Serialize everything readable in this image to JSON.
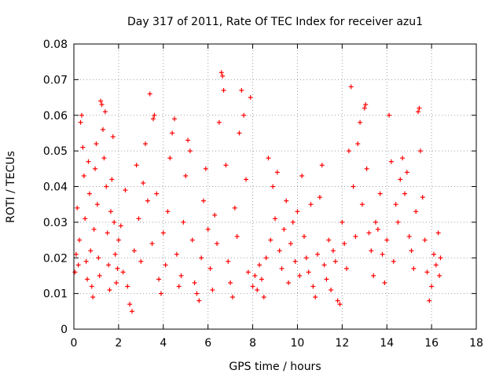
{
  "chart_data": {
    "type": "scatter",
    "title": "Day 317 of 2011, Rate Of TEC Index for receiver azu1",
    "xlabel": "GPS time / hours",
    "ylabel": "ROTI / TECUs",
    "xlim": [
      0,
      18
    ],
    "ylim": [
      0,
      0.08
    ],
    "x_ticks": [
      0,
      2,
      4,
      6,
      8,
      10,
      12,
      14,
      16,
      18
    ],
    "x_tick_labels": [
      "0",
      "2",
      "4",
      "6",
      "8",
      "10",
      "12",
      "14",
      "16",
      "18"
    ],
    "y_ticks": [
      0,
      0.01,
      0.02,
      0.03,
      0.04,
      0.05,
      0.06,
      0.07,
      0.08
    ],
    "y_tick_labels": [
      "0",
      "0.01",
      "0.02",
      "0.03",
      "0.04",
      "0.05",
      "0.06",
      "0.07",
      "0.08"
    ],
    "grid": true,
    "marker": "+",
    "series_color": "#ff0000",
    "series": [
      {
        "name": "ROTI",
        "points": [
          [
            0.05,
            0.016
          ],
          [
            0.1,
            0.021
          ],
          [
            0.15,
            0.034
          ],
          [
            0.2,
            0.018
          ],
          [
            0.25,
            0.025
          ],
          [
            0.3,
            0.058
          ],
          [
            0.35,
            0.06
          ],
          [
            0.4,
            0.051
          ],
          [
            0.45,
            0.043
          ],
          [
            0.5,
            0.031
          ],
          [
            0.55,
            0.019
          ],
          [
            0.6,
            0.014
          ],
          [
            0.65,
            0.047
          ],
          [
            0.7,
            0.038
          ],
          [
            0.75,
            0.022
          ],
          [
            0.8,
            0.012
          ],
          [
            0.85,
            0.009
          ],
          [
            0.9,
            0.028
          ],
          [
            0.95,
            0.045
          ],
          [
            1.0,
            0.052
          ],
          [
            1.05,
            0.035
          ],
          [
            1.1,
            0.02
          ],
          [
            1.15,
            0.015
          ],
          [
            1.2,
            0.064
          ],
          [
            1.25,
            0.063
          ],
          [
            1.3,
            0.056
          ],
          [
            1.35,
            0.048
          ],
          [
            1.4,
            0.061
          ],
          [
            1.45,
            0.04
          ],
          [
            1.5,
            0.027
          ],
          [
            1.55,
            0.018
          ],
          [
            1.6,
            0.011
          ],
          [
            1.65,
            0.033
          ],
          [
            1.7,
            0.042
          ],
          [
            1.75,
            0.054
          ],
          [
            1.8,
            0.03
          ],
          [
            1.85,
            0.021
          ],
          [
            1.9,
            0.013
          ],
          [
            1.95,
            0.017
          ],
          [
            2.0,
            0.025
          ],
          [
            2.1,
            0.029
          ],
          [
            2.2,
            0.016
          ],
          [
            2.3,
            0.039
          ],
          [
            2.4,
            0.012
          ],
          [
            2.5,
            0.007
          ],
          [
            2.6,
            0.005
          ],
          [
            2.7,
            0.022
          ],
          [
            2.8,
            0.046
          ],
          [
            2.9,
            0.031
          ],
          [
            3.0,
            0.019
          ],
          [
            3.1,
            0.041
          ],
          [
            3.2,
            0.052
          ],
          [
            3.3,
            0.036
          ],
          [
            3.4,
            0.066
          ],
          [
            3.5,
            0.024
          ],
          [
            3.55,
            0.059
          ],
          [
            3.6,
            0.06
          ],
          [
            3.7,
            0.038
          ],
          [
            3.8,
            0.014
          ],
          [
            3.9,
            0.01
          ],
          [
            4.0,
            0.027
          ],
          [
            4.1,
            0.018
          ],
          [
            4.2,
            0.033
          ],
          [
            4.3,
            0.048
          ],
          [
            4.4,
            0.055
          ],
          [
            4.5,
            0.059
          ],
          [
            4.6,
            0.021
          ],
          [
            4.7,
            0.012
          ],
          [
            4.8,
            0.015
          ],
          [
            4.9,
            0.03
          ],
          [
            5.0,
            0.043
          ],
          [
            5.1,
            0.053
          ],
          [
            5.2,
            0.05
          ],
          [
            5.3,
            0.025
          ],
          [
            5.4,
            0.013
          ],
          [
            5.5,
            0.01
          ],
          [
            5.6,
            0.008
          ],
          [
            5.7,
            0.02
          ],
          [
            5.8,
            0.036
          ],
          [
            5.9,
            0.045
          ],
          [
            6.0,
            0.028
          ],
          [
            6.1,
            0.017
          ],
          [
            6.2,
            0.011
          ],
          [
            6.3,
            0.032
          ],
          [
            6.4,
            0.024
          ],
          [
            6.5,
            0.058
          ],
          [
            6.6,
            0.072
          ],
          [
            6.65,
            0.071
          ],
          [
            6.7,
            0.067
          ],
          [
            6.8,
            0.046
          ],
          [
            6.9,
            0.019
          ],
          [
            7.0,
            0.013
          ],
          [
            7.1,
            0.009
          ],
          [
            7.2,
            0.034
          ],
          [
            7.3,
            0.026
          ],
          [
            7.4,
            0.055
          ],
          [
            7.5,
            0.067
          ],
          [
            7.6,
            0.06
          ],
          [
            7.7,
            0.042
          ],
          [
            7.8,
            0.016
          ],
          [
            7.9,
            0.065
          ],
          [
            8.0,
            0.012
          ],
          [
            8.1,
            0.015
          ],
          [
            8.2,
            0.011
          ],
          [
            8.3,
            0.018
          ],
          [
            8.4,
            0.014
          ],
          [
            8.5,
            0.009
          ],
          [
            8.6,
            0.02
          ],
          [
            8.7,
            0.048
          ],
          [
            8.8,
            0.025
          ],
          [
            8.9,
            0.04
          ],
          [
            9.0,
            0.031
          ],
          [
            9.1,
            0.044
          ],
          [
            9.2,
            0.022
          ],
          [
            9.3,
            0.017
          ],
          [
            9.4,
            0.028
          ],
          [
            9.5,
            0.036
          ],
          [
            9.6,
            0.013
          ],
          [
            9.7,
            0.024
          ],
          [
            9.8,
            0.03
          ],
          [
            9.9,
            0.019
          ],
          [
            10.0,
            0.033
          ],
          [
            10.1,
            0.015
          ],
          [
            10.2,
            0.043
          ],
          [
            10.3,
            0.026
          ],
          [
            10.4,
            0.02
          ],
          [
            10.5,
            0.016
          ],
          [
            10.6,
            0.035
          ],
          [
            10.7,
            0.012
          ],
          [
            10.8,
            0.009
          ],
          [
            10.9,
            0.021
          ],
          [
            11.0,
            0.037
          ],
          [
            11.1,
            0.046
          ],
          [
            11.2,
            0.018
          ],
          [
            11.3,
            0.014
          ],
          [
            11.4,
            0.025
          ],
          [
            11.5,
            0.011
          ],
          [
            11.6,
            0.022
          ],
          [
            11.7,
            0.019
          ],
          [
            11.8,
            0.008
          ],
          [
            11.9,
            0.007
          ],
          [
            12.0,
            0.03
          ],
          [
            12.1,
            0.024
          ],
          [
            12.2,
            0.017
          ],
          [
            12.3,
            0.05
          ],
          [
            12.4,
            0.068
          ],
          [
            12.5,
            0.04
          ],
          [
            12.6,
            0.026
          ],
          [
            12.7,
            0.052
          ],
          [
            12.8,
            0.058
          ],
          [
            12.9,
            0.035
          ],
          [
            13.0,
            0.062
          ],
          [
            13.05,
            0.063
          ],
          [
            13.1,
            0.045
          ],
          [
            13.2,
            0.027
          ],
          [
            13.3,
            0.022
          ],
          [
            13.4,
            0.015
          ],
          [
            13.5,
            0.03
          ],
          [
            13.6,
            0.028
          ],
          [
            13.7,
            0.038
          ],
          [
            13.8,
            0.021
          ],
          [
            13.9,
            0.013
          ],
          [
            14.0,
            0.025
          ],
          [
            14.1,
            0.06
          ],
          [
            14.2,
            0.047
          ],
          [
            14.3,
            0.019
          ],
          [
            14.4,
            0.035
          ],
          [
            14.5,
            0.03
          ],
          [
            14.6,
            0.042
          ],
          [
            14.7,
            0.048
          ],
          [
            14.8,
            0.038
          ],
          [
            14.9,
            0.044
          ],
          [
            15.0,
            0.026
          ],
          [
            15.1,
            0.022
          ],
          [
            15.2,
            0.017
          ],
          [
            15.3,
            0.033
          ],
          [
            15.4,
            0.061
          ],
          [
            15.45,
            0.062
          ],
          [
            15.5,
            0.05
          ],
          [
            15.6,
            0.037
          ],
          [
            15.7,
            0.025
          ],
          [
            15.8,
            0.016
          ],
          [
            15.9,
            0.008
          ],
          [
            16.0,
            0.012
          ],
          [
            16.1,
            0.021
          ],
          [
            16.2,
            0.018
          ],
          [
            16.3,
            0.027
          ],
          [
            16.35,
            0.015
          ],
          [
            16.4,
            0.02
          ]
        ]
      }
    ]
  }
}
